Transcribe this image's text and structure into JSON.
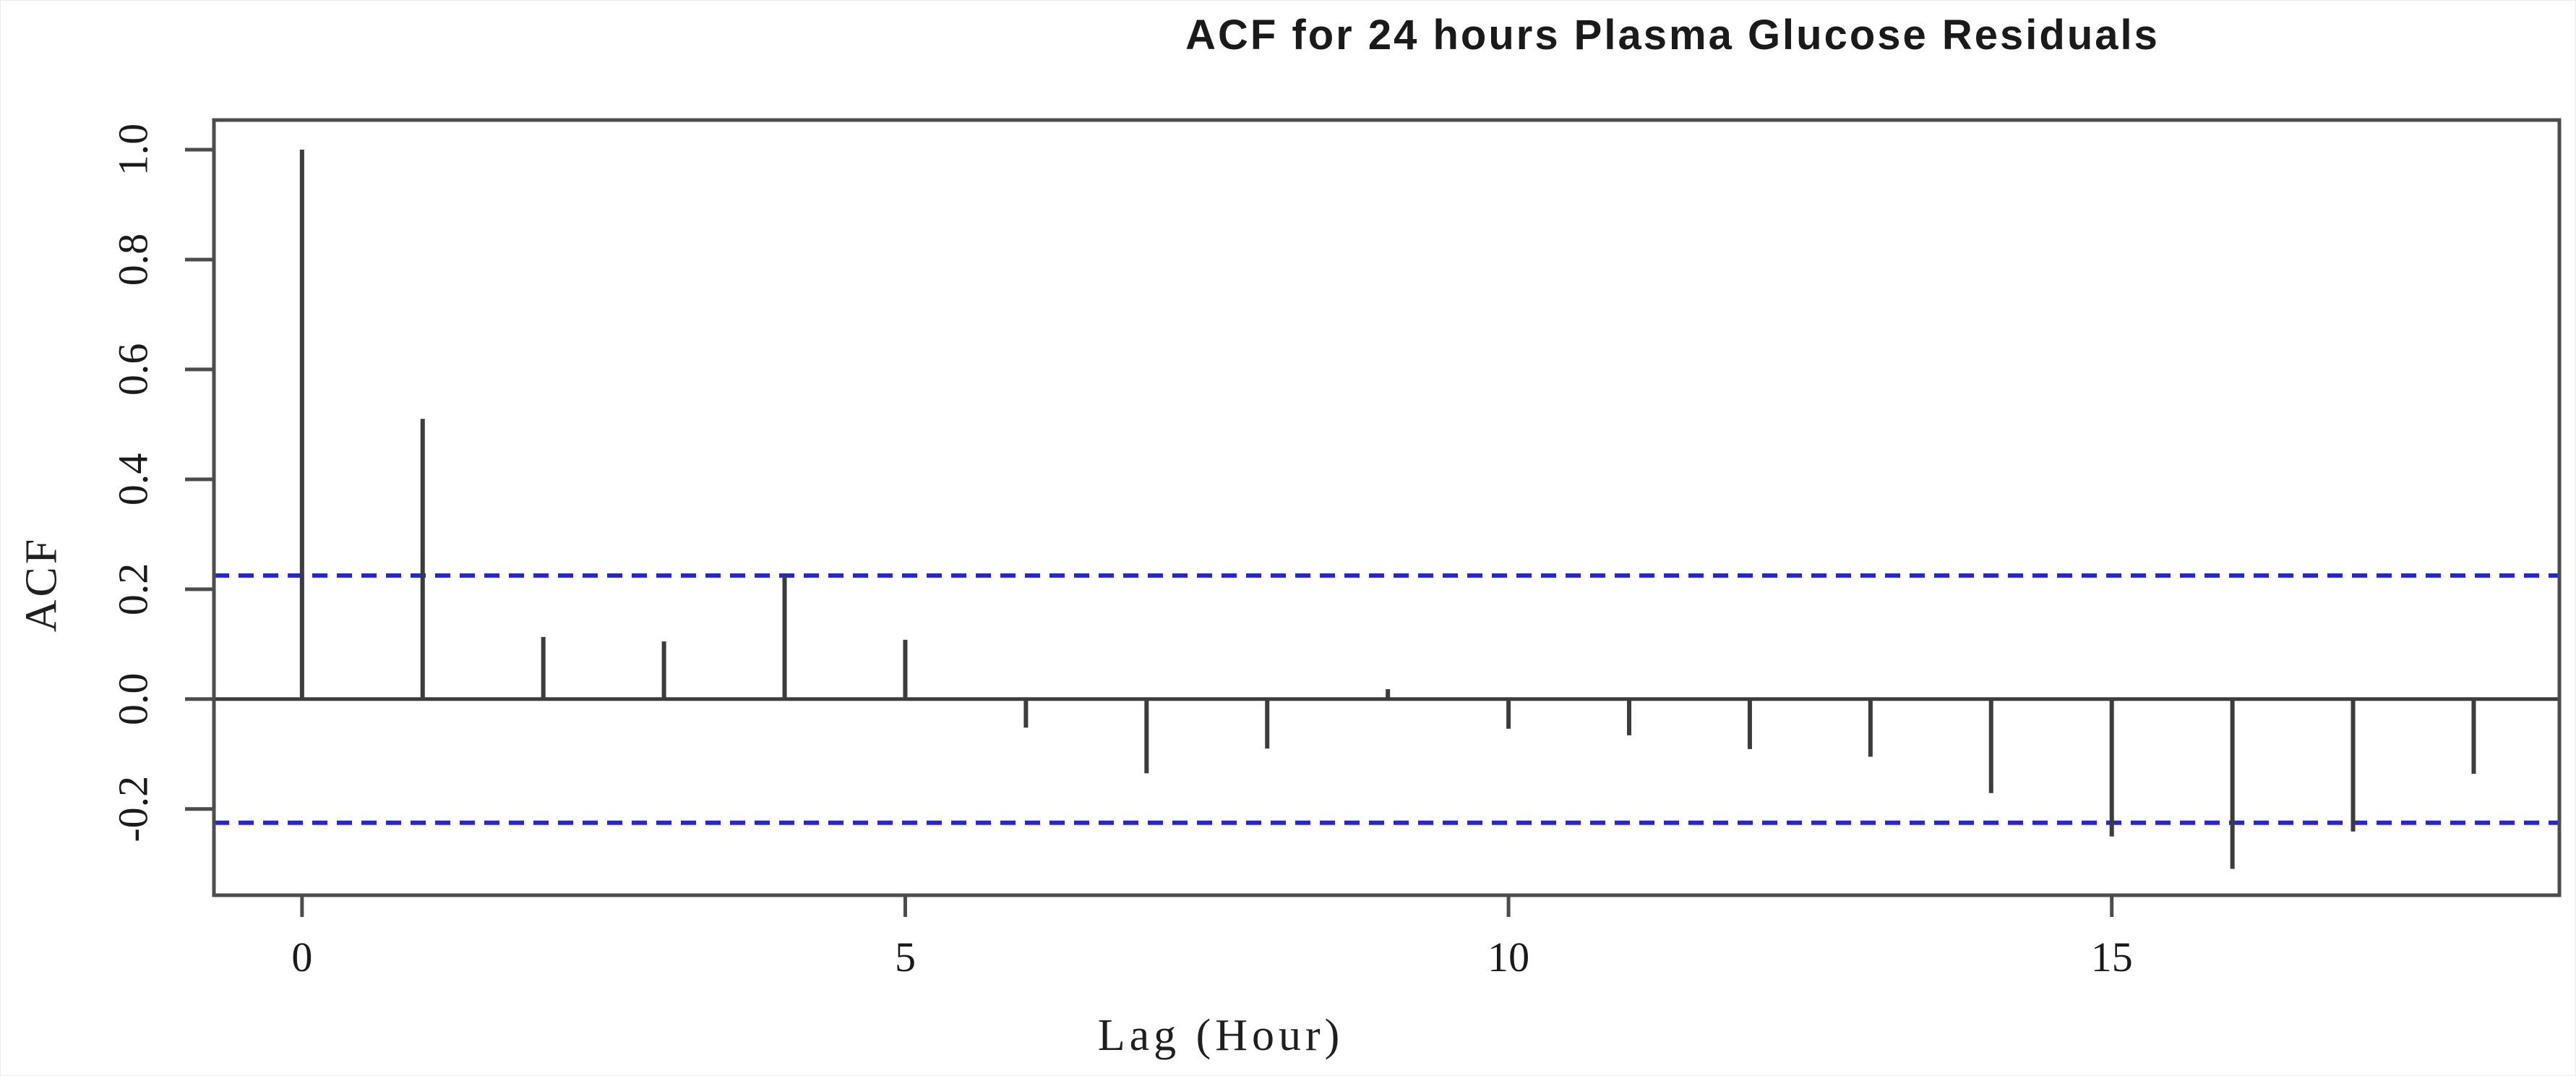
{
  "chart_data": {
    "type": "bar",
    "subtype": "acf-stem-plot",
    "title": "ACF for 24 hours Plasma Glucose Residuals",
    "xlabel": "Lag (Hour)",
    "ylabel": "ACF",
    "x": [
      0,
      1,
      2,
      3,
      4,
      5,
      6,
      7,
      8,
      9,
      10,
      11,
      12,
      13,
      14,
      15,
      16,
      17,
      18
    ],
    "values": [
      1.0,
      0.51,
      0.113,
      0.105,
      0.225,
      0.108,
      -0.052,
      -0.135,
      -0.09,
      0.018,
      -0.054,
      -0.066,
      -0.091,
      -0.105,
      -0.171,
      -0.25,
      -0.309,
      -0.241,
      -0.136
    ],
    "confidence_bound": 0.225,
    "confidence_line_style": "dashed",
    "x_ticks": [
      0,
      5,
      10,
      15
    ],
    "x_tick_labels": [
      "0",
      "5",
      "10",
      "15"
    ],
    "y_ticks": [
      1.0,
      0.8,
      0.6,
      0.4,
      0.2,
      0.0,
      -0.2
    ],
    "y_tick_labels": [
      "1.0",
      "0.8",
      "0.6",
      "0.4",
      "0.2",
      "0.0",
      "-0.2"
    ],
    "xlim": [
      -0.73,
      18.71
    ],
    "ylim": [
      -0.357,
      1.054
    ],
    "grid": false,
    "legend": null,
    "colors": {
      "stem": "#3c3c3c",
      "zero_line": "#3c3c3c",
      "axis_frame": "#4c4c4c",
      "confidence": "#2424dd",
      "text": "#1a1a1a",
      "background": "#ffffff"
    }
  }
}
